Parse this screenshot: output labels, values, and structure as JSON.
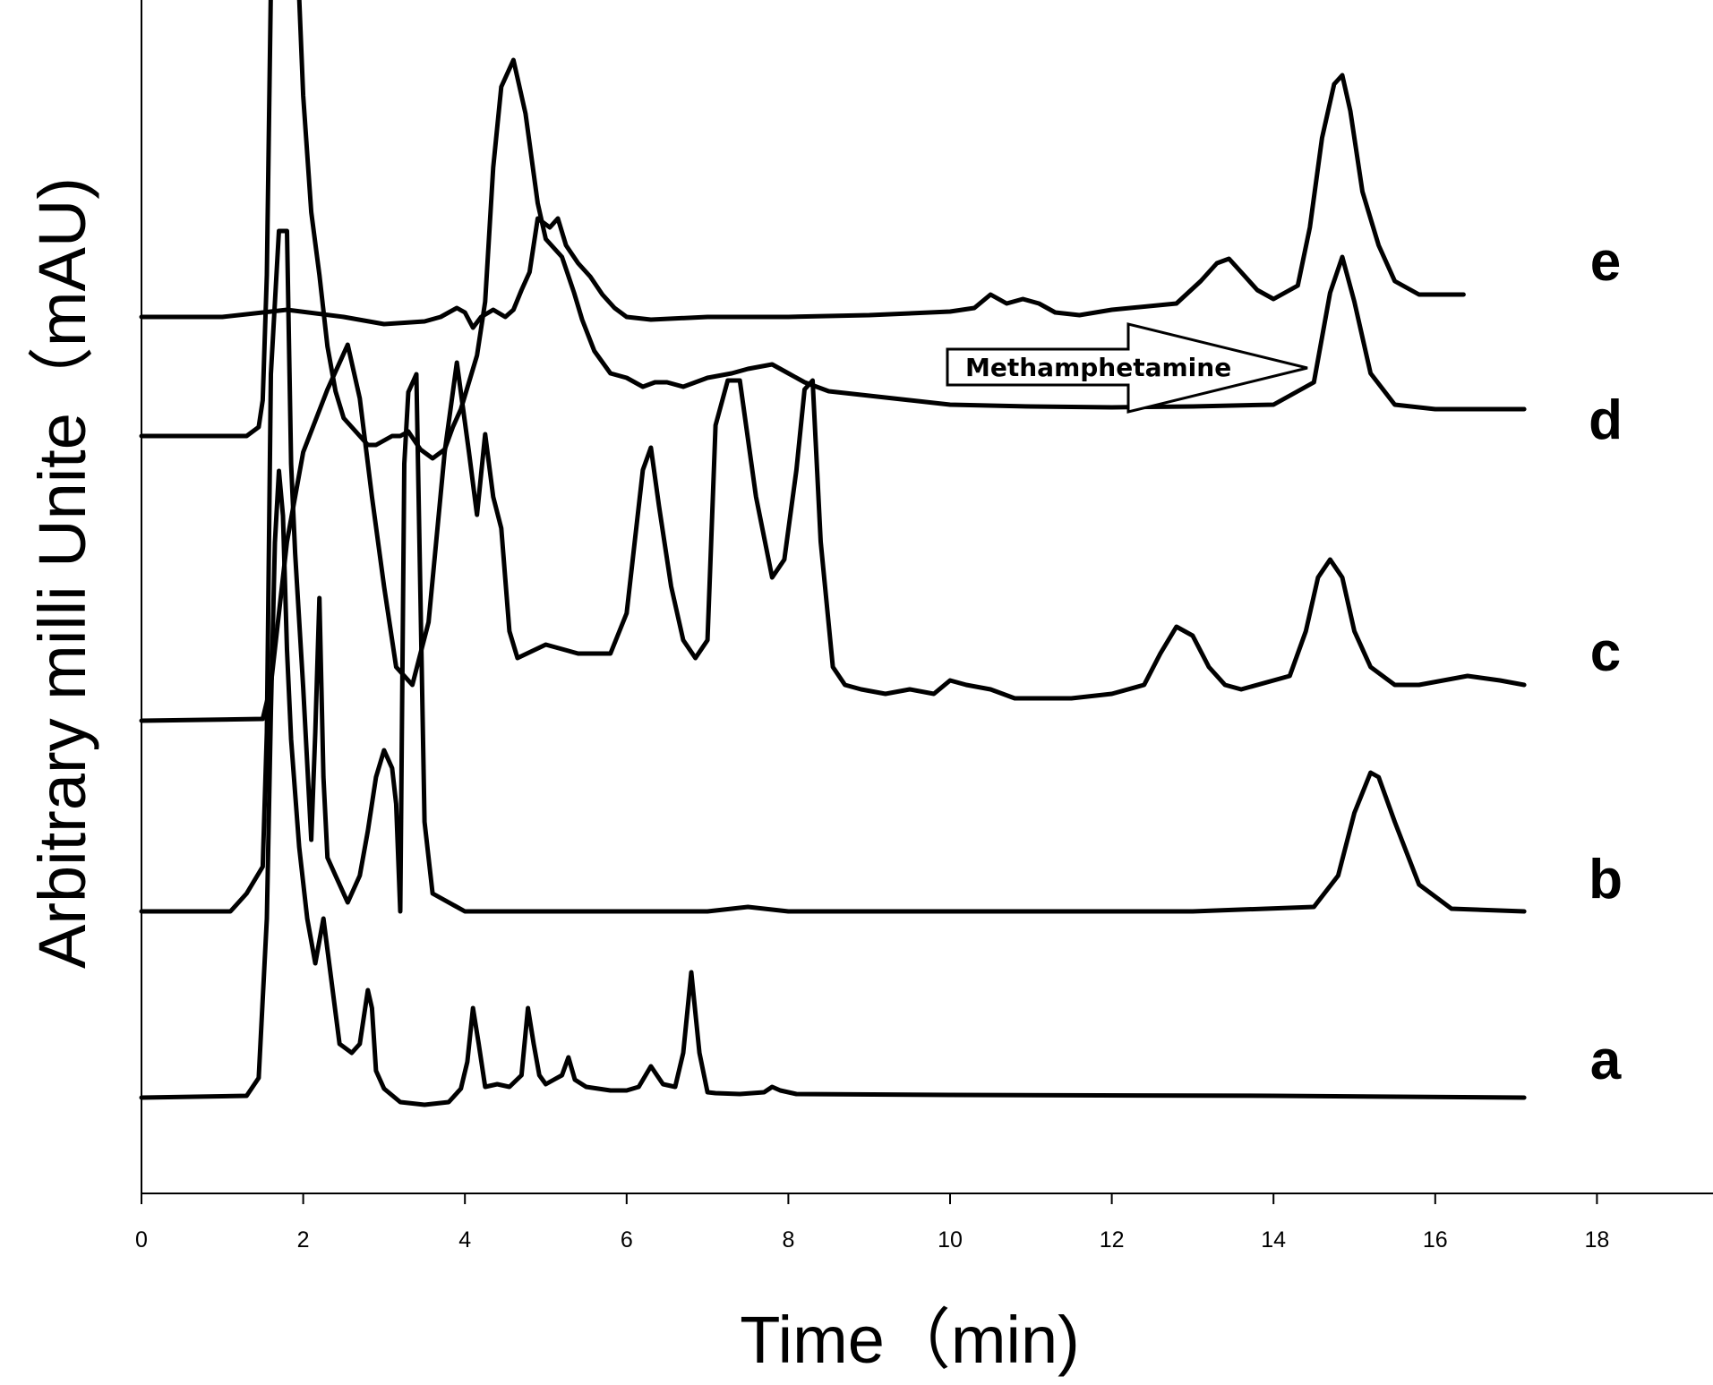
{
  "chart_data": {
    "type": "line",
    "xlabel": "Time（min)",
    "ylabel": "Arbitrary milli Unite（mAU)",
    "xlim": [
      0,
      19.5
    ],
    "xticks": [
      "0",
      "2",
      "4",
      "6",
      "8",
      "10",
      "12",
      "14",
      "16",
      "18"
    ],
    "grid": false,
    "legend": "none",
    "annotation": {
      "text": "Methamphetamine",
      "x_start": 10.0,
      "x_end": 14.4
    },
    "series": [
      {
        "name": "a",
        "x": [
          0.0,
          1.3,
          1.45,
          1.55,
          1.6,
          1.65,
          1.7,
          1.75,
          1.8,
          1.85,
          1.95,
          2.05,
          2.15,
          2.25,
          2.35,
          2.45,
          2.6,
          2.7,
          2.8,
          2.85,
          2.9,
          3.0,
          3.2,
          3.5,
          3.8,
          3.95,
          4.03,
          4.1,
          4.17,
          4.25,
          4.4,
          4.55,
          4.7,
          4.78,
          4.85,
          4.92,
          5.0,
          5.1,
          5.2,
          5.28,
          5.36,
          5.5,
          5.8,
          6.0,
          6.15,
          6.3,
          6.45,
          6.6,
          6.7,
          6.8,
          6.9,
          7.0,
          7.1,
          7.4,
          7.7,
          7.8,
          7.9,
          8.1,
          10.0,
          14.0,
          17.1
        ],
        "y": [
          0,
          2,
          22,
          200,
          430,
          620,
          700,
          650,
          500,
          400,
          280,
          200,
          150,
          200,
          130,
          60,
          50,
          60,
          120,
          100,
          30,
          10,
          -5,
          -8,
          -5,
          10,
          40,
          100,
          60,
          12,
          15,
          12,
          25,
          100,
          60,
          25,
          15,
          20,
          25,
          45,
          20,
          12,
          8,
          8,
          12,
          35,
          15,
          12,
          50,
          140,
          50,
          6,
          5,
          4,
          6,
          12,
          8,
          4,
          3,
          2,
          0
        ]
      },
      {
        "name": "b",
        "x": [
          0.0,
          1.1,
          1.2,
          1.3,
          1.5,
          1.55,
          1.6,
          1.7,
          1.8,
          1.85,
          1.9,
          2.0,
          2.1,
          2.15,
          2.2,
          2.25,
          2.3,
          2.4,
          2.55,
          2.7,
          2.8,
          2.9,
          3.0,
          3.1,
          3.15,
          3.2,
          3.25,
          3.3,
          3.4,
          3.5,
          3.6,
          4.0,
          7.0,
          7.5,
          8.0,
          13.0,
          14.5,
          14.8,
          15.0,
          15.2,
          15.3,
          15.5,
          15.8,
          16.2,
          17.1
        ],
        "y": [
          0,
          0,
          10,
          20,
          50,
          200,
          600,
          760,
          760,
          500,
          400,
          250,
          80,
          200,
          350,
          150,
          60,
          40,
          10,
          40,
          90,
          150,
          180,
          160,
          120,
          0,
          500,
          580,
          600,
          100,
          20,
          0,
          0,
          5,
          0,
          0,
          5,
          40,
          110,
          155,
          150,
          100,
          30,
          3,
          0
        ]
      },
      {
        "name": "c",
        "x": [
          0.0,
          1.5,
          1.6,
          1.7,
          1.8,
          2.0,
          2.3,
          2.55,
          2.7,
          2.85,
          3.0,
          3.15,
          3.35,
          3.55,
          3.75,
          3.9,
          4.05,
          4.15,
          4.25,
          4.35,
          4.45,
          4.55,
          4.65,
          5.0,
          5.4,
          5.6,
          5.8,
          6.0,
          6.2,
          6.3,
          6.4,
          6.55,
          6.7,
          6.85,
          7.0,
          7.1,
          7.25,
          7.4,
          7.6,
          7.8,
          7.95,
          8.1,
          8.2,
          8.3,
          8.4,
          8.55,
          8.7,
          8.9,
          9.2,
          9.5,
          9.8,
          10.0,
          10.2,
          10.5,
          10.8,
          11.0,
          11.5,
          12.0,
          12.4,
          12.6,
          12.8,
          13.0,
          13.2,
          13.4,
          13.6,
          14.2,
          14.4,
          14.55,
          14.7,
          14.85,
          15.0,
          15.2,
          15.5,
          15.8,
          16.1,
          16.4,
          16.8,
          17.1
        ],
        "y": [
          0,
          2,
          40,
          120,
          200,
          300,
          370,
          420,
          360,
          250,
          150,
          60,
          40,
          110,
          300,
          400,
          300,
          230,
          320,
          250,
          215,
          100,
          70,
          85,
          75,
          75,
          75,
          120,
          280,
          305,
          240,
          150,
          90,
          70,
          90,
          330,
          380,
          380,
          250,
          160,
          180,
          280,
          370,
          380,
          200,
          60,
          40,
          35,
          30,
          35,
          30,
          45,
          40,
          35,
          25,
          25,
          25,
          30,
          40,
          75,
          105,
          95,
          60,
          40,
          35,
          50,
          100,
          160,
          180,
          160,
          100,
          60,
          40,
          40,
          45,
          50,
          45,
          40
        ]
      },
      {
        "name": "d",
        "x": [
          0.0,
          1.3,
          1.45,
          1.5,
          1.55,
          1.6,
          1.7,
          1.8,
          1.9,
          2.0,
          2.1,
          2.2,
          2.3,
          2.4,
          2.5,
          2.6,
          2.7,
          2.8,
          2.9,
          3.0,
          3.1,
          3.2,
          3.3,
          3.45,
          3.6,
          3.75,
          3.85,
          3.95,
          4.05,
          4.15,
          4.25,
          4.35,
          4.45,
          4.6,
          4.75,
          4.9,
          5.0,
          5.2,
          5.35,
          5.45,
          5.6,
          5.8,
          6.0,
          6.2,
          6.35,
          6.5,
          6.7,
          6.85,
          7.0,
          7.3,
          7.5,
          7.8,
          8.0,
          8.2,
          8.5,
          9.0,
          9.5,
          10.0,
          11.0,
          12.0,
          13.0,
          14.0,
          14.5,
          14.7,
          14.85,
          15.0,
          15.2,
          15.5,
          16.0,
          16.5,
          17.1
        ],
        "y": [
          0,
          0,
          10,
          40,
          180,
          500,
          720,
          730,
          600,
          380,
          250,
          180,
          100,
          50,
          20,
          10,
          0,
          -10,
          -10,
          -5,
          0,
          0,
          5,
          -15,
          -25,
          -15,
          10,
          30,
          60,
          90,
          150,
          300,
          390,
          420,
          360,
          260,
          220,
          200,
          160,
          130,
          95,
          70,
          65,
          55,
          60,
          60,
          55,
          60,
          65,
          70,
          75,
          80,
          70,
          60,
          50,
          45,
          40,
          35,
          33,
          32,
          33,
          35,
          60,
          160,
          200,
          150,
          70,
          35,
          30,
          30,
          30
        ]
      },
      {
        "name": "e",
        "x": [
          0.0,
          1.0,
          1.8,
          2.5,
          3.0,
          3.5,
          3.7,
          3.9,
          4.0,
          4.1,
          4.2,
          4.35,
          4.5,
          4.6,
          4.7,
          4.8,
          4.9,
          5.05,
          5.15,
          5.25,
          5.4,
          5.55,
          5.7,
          5.85,
          6.0,
          6.3,
          7.0,
          8.0,
          9.0,
          10.0,
          10.3,
          10.5,
          10.7,
          10.9,
          11.1,
          11.3,
          11.6,
          12.0,
          12.8,
          13.1,
          13.3,
          13.45,
          13.6,
          13.8,
          14.0,
          14.3,
          14.45,
          14.6,
          14.75,
          14.85,
          14.95,
          15.1,
          15.3,
          15.5,
          15.8,
          16.1,
          16.35
        ],
        "y": [
          0,
          0,
          8,
          0,
          -8,
          -5,
          0,
          10,
          5,
          -12,
          0,
          8,
          0,
          8,
          30,
          50,
          110,
          100,
          110,
          80,
          60,
          45,
          25,
          10,
          0,
          -3,
          0,
          0,
          2,
          6,
          10,
          25,
          15,
          20,
          15,
          5,
          2,
          8,
          15,
          40,
          60,
          65,
          50,
          30,
          20,
          35,
          100,
          200,
          260,
          270,
          230,
          140,
          80,
          40,
          25,
          25,
          25
        ]
      }
    ]
  }
}
